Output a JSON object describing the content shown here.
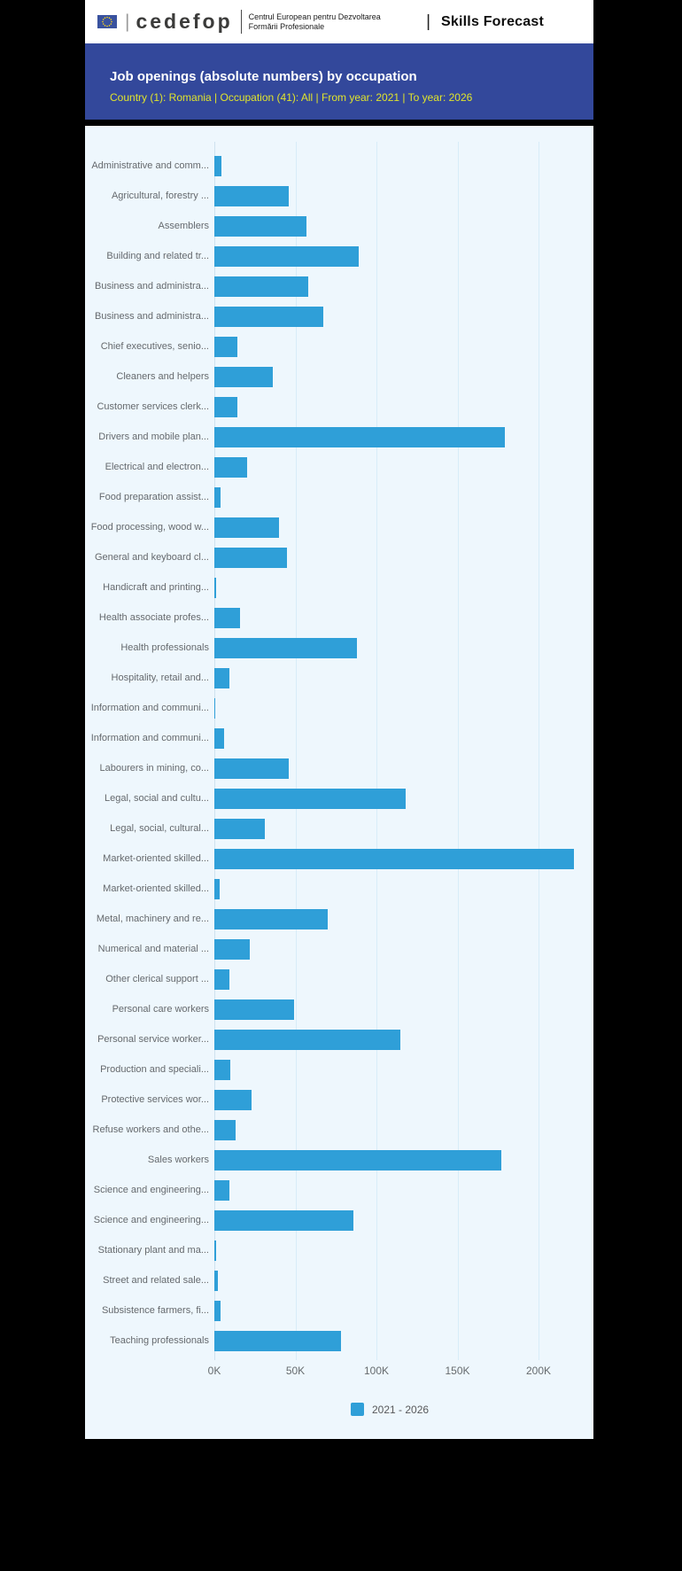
{
  "header": {
    "separator1": "|",
    "wordmark": "cedefop",
    "org_line1": "Centrul European pentru Dezvoltarea",
    "org_line2": "Formării Profesionale",
    "separator2": "|",
    "app_title": "Skills Forecast"
  },
  "banner": {
    "title": "Job openings (absolute numbers) by occupation",
    "subtitle": "Country (1): Romania | Occupation (41): All | From year: 2021 | To year: 2026"
  },
  "chart_data": {
    "type": "bar",
    "orientation": "horizontal",
    "title": "Job openings (absolute numbers) by occupation",
    "xlabel": "",
    "ylabel": "",
    "grid": true,
    "plot_bg": "#eef7fd",
    "bar_color": "#2f9fd8",
    "categories": [
      "Administrative and comm...",
      "Agricultural, forestry ...",
      "Assemblers",
      "Building and related tr...",
      "Business and administra...",
      "Business and administra...",
      "Chief executives, senio...",
      "Cleaners and helpers",
      "Customer services clerk...",
      "Drivers and mobile plan...",
      "Electrical and electron...",
      "Food preparation assist...",
      "Food processing, wood w...",
      "General and keyboard cl...",
      "Handicraft and printing...",
      "Health associate profes...",
      "Health professionals",
      "Hospitality, retail and...",
      "Information and communi...",
      "Information and communi...",
      "Labourers in mining, co...",
      "Legal, social and cultu...",
      "Legal, social, cultural...",
      "Market-oriented skilled...",
      "Market-oriented skilled...",
      "Metal, machinery and re...",
      "Numerical and material ...",
      "Other clerical support ...",
      "Personal care workers",
      "Personal service worker...",
      "Production and speciali...",
      "Protective services wor...",
      "Refuse workers and othe...",
      "Sales workers",
      "Science and engineering...",
      "Science and engineering...",
      "Stationary plant and ma...",
      "Street and related sale...",
      "Subsistence farmers, fi...",
      "Teaching professionals"
    ],
    "values": [
      4500,
      46000,
      57000,
      89000,
      58000,
      67000,
      14000,
      36000,
      14000,
      179000,
      20000,
      4000,
      40000,
      45000,
      1200,
      16000,
      88000,
      9000,
      600,
      6000,
      46000,
      118000,
      31000,
      222000,
      3000,
      70000,
      22000,
      9000,
      49000,
      115000,
      10000,
      23000,
      13000,
      177000,
      9000,
      86000,
      1000,
      2000,
      4000,
      78000
    ],
    "axis": {
      "ticks": [
        0,
        50000,
        100000,
        150000,
        200000
      ],
      "tick_labels": [
        "0K",
        "50K",
        "100K",
        "150K",
        "200K"
      ],
      "xlim": [
        0,
        234000
      ]
    },
    "legend": {
      "label": "2021 - 2026",
      "position": "bottom"
    }
  }
}
